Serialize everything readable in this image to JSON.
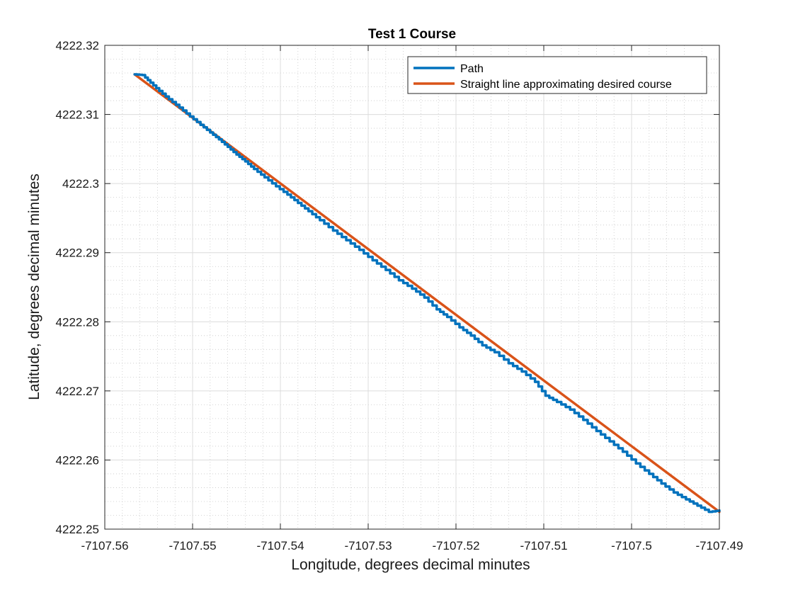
{
  "chart_data": {
    "type": "line",
    "title": "Test 1 Course",
    "xlabel": "Longitude, degrees decimal minutes",
    "ylabel": "Latitude, degrees decimal minutes",
    "xlim": [
      -7107.56,
      -7107.49
    ],
    "ylim": [
      4222.25,
      4222.32
    ],
    "xticks": [
      -7107.56,
      -7107.55,
      -7107.54,
      -7107.53,
      -7107.52,
      -7107.51,
      -7107.5,
      -7107.49
    ],
    "xtick_labels": [
      "-7107.56",
      "-7107.55",
      "-7107.54",
      "-7107.53",
      "-7107.52",
      "-7107.51",
      "-7107.5",
      "-7107.49"
    ],
    "yticks": [
      4222.25,
      4222.26,
      4222.27,
      4222.28,
      4222.29,
      4222.3,
      4222.31,
      4222.32
    ],
    "ytick_labels": [
      "4222.25",
      "4222.26",
      "4222.27",
      "4222.28",
      "4222.29",
      "4222.3",
      "4222.31",
      "4222.32"
    ],
    "grid": true,
    "minor_grid": true,
    "legend_position": "top-right",
    "series": [
      {
        "name": "Path",
        "color": "#0072BD",
        "x": [
          -7107.5566,
          -7107.5557,
          -7107.5548,
          -7107.5538,
          -7107.5527,
          -7107.5515,
          -7107.5503,
          -7107.5491,
          -7107.548,
          -7107.547,
          -7107.546,
          -7107.545,
          -7107.544,
          -7107.543,
          -7107.5418,
          -7107.5405,
          -7107.5392,
          -7107.538,
          -7107.5368,
          -7107.5355,
          -7107.534,
          -7107.5325,
          -7107.531,
          -7107.5295,
          -7107.528,
          -7107.5265,
          -7107.525,
          -7107.5236,
          -7107.5222,
          -7107.521,
          -7107.5196,
          -7107.5183,
          -7107.517,
          -7107.5156,
          -7107.514,
          -7107.5125,
          -7107.511,
          -7107.5098,
          -7107.5085,
          -7107.507,
          -7107.5055,
          -7107.504,
          -7107.5025,
          -7107.501,
          -7107.4995,
          -7107.498,
          -7107.4966,
          -7107.4952,
          -7107.4938,
          -7107.4925,
          -7107.4912,
          -7107.49
        ],
        "y": [
          4222.3158,
          4222.3157,
          4222.3146,
          4222.3134,
          4222.3122,
          4222.311,
          4222.3097,
          4222.3085,
          4222.3074,
          4222.3064,
          4222.3053,
          4222.3042,
          4222.3032,
          4222.3021,
          4222.3009,
          4222.2996,
          4222.2984,
          4222.2972,
          4222.296,
          4222.2947,
          4222.2932,
          4222.2918,
          4222.2904,
          4222.2889,
          4222.2875,
          4222.286,
          4222.2848,
          4222.2835,
          4222.2818,
          4222.2807,
          4222.2792,
          4222.278,
          4222.2766,
          4222.2756,
          4222.274,
          4222.2728,
          4222.2713,
          4222.2693,
          4222.2684,
          4222.2673,
          4222.2658,
          4222.2642,
          4222.2627,
          4222.2612,
          4222.2595,
          4222.258,
          4222.2566,
          4222.2553,
          4222.2543,
          4222.2534,
          4222.2525,
          4222.2527
        ]
      },
      {
        "name": "Straight line approximating desired course",
        "color": "#D95319",
        "x": [
          -7107.5566,
          -7107.49
        ],
        "y": [
          4222.3158,
          4222.2525
        ]
      }
    ]
  }
}
